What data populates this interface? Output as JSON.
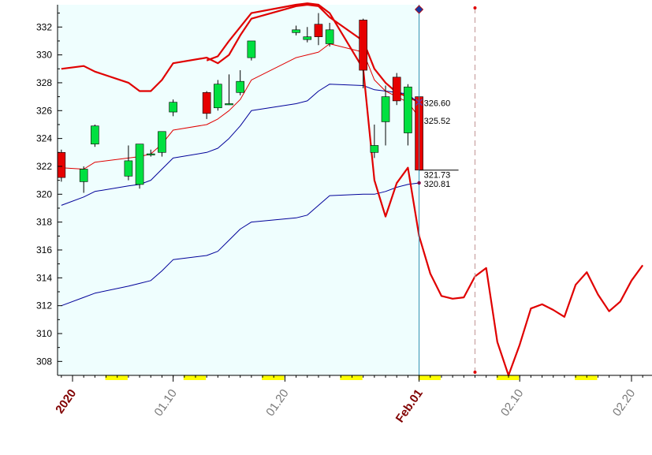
{
  "chart_data": {
    "type": "candlestick",
    "ylim": [
      307,
      333.6
    ],
    "yticks": [
      308,
      310,
      312,
      314,
      316,
      318,
      320,
      322,
      324,
      326,
      328,
      330,
      332
    ],
    "x_tick_labels": [
      {
        "label": "2020",
        "date": "2020-01-01",
        "emphasis": true
      },
      {
        "label": "01.10",
        "date": "2020-01-10",
        "emphasis": false
      },
      {
        "label": "01.20",
        "date": "2020-01-20",
        "emphasis": false
      },
      {
        "label": "Feb.01",
        "date": "2020-02-01",
        "emphasis": true
      },
      {
        "label": "02.10",
        "date": "2020-02-10",
        "emphasis": false
      },
      {
        "label": "02.20",
        "date": "2020-02-20",
        "emphasis": false
      }
    ],
    "candles": [
      {
        "date": "2019-12-31",
        "open": 323.0,
        "high": 323.2,
        "low": 320.9,
        "close": 321.2
      },
      {
        "date": "2020-01-02",
        "open": 320.9,
        "high": 322.0,
        "low": 320.1,
        "close": 321.8
      },
      {
        "date": "2020-01-03",
        "open": 323.6,
        "high": 325.0,
        "low": 323.4,
        "close": 324.9
      },
      {
        "date": "2020-01-06",
        "open": 321.3,
        "high": 323.5,
        "low": 321.0,
        "close": 322.4
      },
      {
        "date": "2020-01-07",
        "open": 320.7,
        "high": 323.6,
        "low": 320.4,
        "close": 323.6
      },
      {
        "date": "2020-01-08",
        "open": 322.9,
        "high": 323.2,
        "low": 322.7,
        "close": 322.9
      },
      {
        "date": "2020-01-09",
        "open": 323.0,
        "high": 324.5,
        "low": 322.7,
        "close": 324.5
      },
      {
        "date": "2020-01-10",
        "open": 325.9,
        "high": 326.8,
        "low": 325.6,
        "close": 326.6
      },
      {
        "date": "2020-01-13",
        "open": 327.3,
        "high": 327.4,
        "low": 325.4,
        "close": 325.8
      },
      {
        "date": "2020-01-14",
        "open": 326.2,
        "high": 328.2,
        "low": 326.0,
        "close": 327.9
      },
      {
        "date": "2020-01-15",
        "open": 326.5,
        "high": 328.6,
        "low": 326.4,
        "close": 326.5
      },
      {
        "date": "2020-01-16",
        "open": 327.3,
        "high": 328.9,
        "low": 327.1,
        "close": 328.1
      },
      {
        "date": "2020-01-17",
        "open": 329.8,
        "high": 331.0,
        "low": 329.6,
        "close": 331.0
      },
      {
        "date": "2020-01-21",
        "open": 331.6,
        "high": 332.1,
        "low": 331.4,
        "close": 331.8
      },
      {
        "date": "2020-01-22",
        "open": 331.1,
        "high": 332.0,
        "low": 330.9,
        "close": 331.3
      },
      {
        "date": "2020-01-23",
        "open": 332.2,
        "high": 333.0,
        "low": 330.7,
        "close": 331.3
      },
      {
        "date": "2020-01-24",
        "open": 330.8,
        "high": 332.3,
        "low": 330.6,
        "close": 331.8
      },
      {
        "date": "2020-01-27",
        "open": 332.5,
        "high": 332.6,
        "low": 327.6,
        "close": 328.9
      },
      {
        "date": "2020-01-28",
        "open": 323.0,
        "high": 325.0,
        "low": 322.6,
        "close": 323.5
      },
      {
        "date": "2020-01-29",
        "open": 325.2,
        "high": 327.8,
        "low": 323.5,
        "close": 327.0
      },
      {
        "date": "2020-01-30",
        "open": 328.4,
        "high": 328.7,
        "low": 326.4,
        "close": 326.7
      },
      {
        "date": "2020-01-31",
        "open": 324.4,
        "high": 327.9,
        "low": 323.5,
        "close": 327.7
      },
      {
        "date": "2020-02-01",
        "open": 327.0,
        "high": 327.0,
        "low": 321.7,
        "close": 321.73
      }
    ],
    "series": [
      {
        "role": "upper-band",
        "color": "#e00000",
        "x": [
          "2019-12-31",
          "2020-01-02",
          "2020-01-03",
          "2020-01-06",
          "2020-01-07",
          "2020-01-08",
          "2020-01-09",
          "2020-01-10",
          "2020-01-13",
          "2020-01-14",
          "2020-01-15",
          "2020-01-16",
          "2020-01-17",
          "2020-01-21",
          "2020-01-22",
          "2020-01-23",
          "2020-01-24",
          "2020-01-27",
          "2020-01-28",
          "2020-01-29",
          "2020-01-30",
          "2020-01-31",
          "2020-02-01"
        ],
        "values": [
          329.0,
          329.2,
          328.8,
          328.0,
          327.4,
          327.4,
          328.2,
          329.4,
          329.8,
          329.4,
          330.0,
          331.4,
          332.6,
          333.5,
          333.6,
          333.5,
          332.7,
          331.0,
          329.0,
          328.0,
          327.3,
          327.0,
          326.6
        ]
      },
      {
        "role": "middle-band",
        "color": "#000099",
        "x": [
          "2019-12-31",
          "2020-01-02",
          "2020-01-03",
          "2020-01-06",
          "2020-01-07",
          "2020-01-08",
          "2020-01-09",
          "2020-01-10",
          "2020-01-13",
          "2020-01-14",
          "2020-01-15",
          "2020-01-16",
          "2020-01-17",
          "2020-01-21",
          "2020-01-22",
          "2020-01-23",
          "2020-01-24",
          "2020-01-27",
          "2020-01-28",
          "2020-01-29",
          "2020-01-30",
          "2020-01-31",
          "2020-02-01"
        ],
        "values": [
          319.2,
          319.8,
          320.2,
          320.6,
          320.7,
          321.0,
          321.8,
          322.6,
          323.0,
          323.3,
          324.0,
          324.9,
          326.0,
          326.5,
          326.7,
          327.4,
          327.9,
          327.8,
          327.5,
          327.4,
          327.3,
          327.2,
          326.5
        ]
      },
      {
        "role": "lower-band",
        "color": "#000099",
        "x": [
          "2019-12-31",
          "2020-01-02",
          "2020-01-03",
          "2020-01-06",
          "2020-01-07",
          "2020-01-08",
          "2020-01-09",
          "2020-01-10",
          "2020-01-13",
          "2020-01-14",
          "2020-01-15",
          "2020-01-16",
          "2020-01-17",
          "2020-01-21",
          "2020-01-22",
          "2020-01-23",
          "2020-01-24",
          "2020-01-27",
          "2020-01-28",
          "2020-01-29",
          "2020-01-30",
          "2020-01-31",
          "2020-02-01"
        ],
        "values": [
          312.0,
          312.6,
          312.9,
          313.4,
          313.6,
          313.8,
          314.5,
          315.3,
          315.6,
          315.9,
          316.7,
          317.5,
          318.0,
          318.3,
          318.5,
          319.2,
          319.9,
          320.0,
          320.0,
          320.2,
          320.5,
          320.7,
          320.81
        ]
      },
      {
        "role": "moving-average",
        "color": "#e00000",
        "x": [
          "2019-12-31",
          "2020-01-02",
          "2020-01-03",
          "2020-01-06",
          "2020-01-07",
          "2020-01-08",
          "2020-01-09",
          "2020-01-10",
          "2020-01-13",
          "2020-01-14",
          "2020-01-15",
          "2020-01-16",
          "2020-01-17",
          "2020-01-21",
          "2020-01-22",
          "2020-01-23",
          "2020-01-24",
          "2020-01-27",
          "2020-01-28",
          "2020-01-29",
          "2020-01-30",
          "2020-01-31",
          "2020-02-01"
        ],
        "values": [
          321.9,
          321.8,
          322.3,
          322.6,
          322.7,
          322.9,
          323.6,
          324.6,
          325.0,
          325.4,
          326.0,
          326.8,
          328.2,
          329.8,
          330.0,
          330.2,
          330.8,
          330.2,
          328.2,
          327.4,
          327.0,
          326.6,
          325.52
        ]
      },
      {
        "role": "projection",
        "color": "#e00000",
        "x": [
          "2020-01-13",
          "2020-01-14",
          "2020-01-15",
          "2020-01-16",
          "2020-01-17",
          "2020-01-21",
          "2020-01-22",
          "2020-01-23",
          "2020-01-24",
          "2020-01-27",
          "2020-01-28",
          "2020-01-29",
          "2020-01-30",
          "2020-01-31",
          "2020-02-01",
          "2020-02-02",
          "2020-02-03",
          "2020-02-04",
          "2020-02-05",
          "2020-02-06",
          "2020-02-07",
          "2020-02-08",
          "2020-02-09",
          "2020-02-10",
          "2020-02-11",
          "2020-02-12",
          "2020-02-13",
          "2020-02-14",
          "2020-02-15",
          "2020-02-16",
          "2020-02-17",
          "2020-02-18",
          "2020-02-19",
          "2020-02-20",
          "2020-02-21"
        ],
        "values": [
          329.6,
          329.9,
          331.0,
          332.0,
          333.0,
          333.6,
          333.7,
          333.6,
          333.0,
          329.0,
          321.0,
          318.4,
          320.8,
          321.9,
          317.0,
          314.3,
          312.7,
          312.5,
          312.6,
          314.1,
          314.7,
          309.4,
          307.0,
          309.2,
          311.8,
          312.1,
          311.7,
          311.2,
          313.5,
          314.4,
          312.8,
          311.6,
          312.3,
          313.8,
          314.9
        ]
      }
    ],
    "value_labels": [
      "326.60",
      "325.52",
      "321.73",
      "320.81"
    ],
    "current_date": "2020-02-01",
    "marker_date": "2020-02-06",
    "highlight_weeks": [
      "2020-01-04",
      "2020-01-11",
      "2020-01-18",
      "2020-01-25",
      "2020-02-01",
      "2020-02-08",
      "2020-02-15"
    ],
    "colors": {
      "plot_bg": "#effefe",
      "up": "#00e040",
      "down": "#e60000",
      "weekend": "#ffff00",
      "tick_emphasis": "#800000",
      "tick_normal": "#7a7a7a"
    }
  }
}
